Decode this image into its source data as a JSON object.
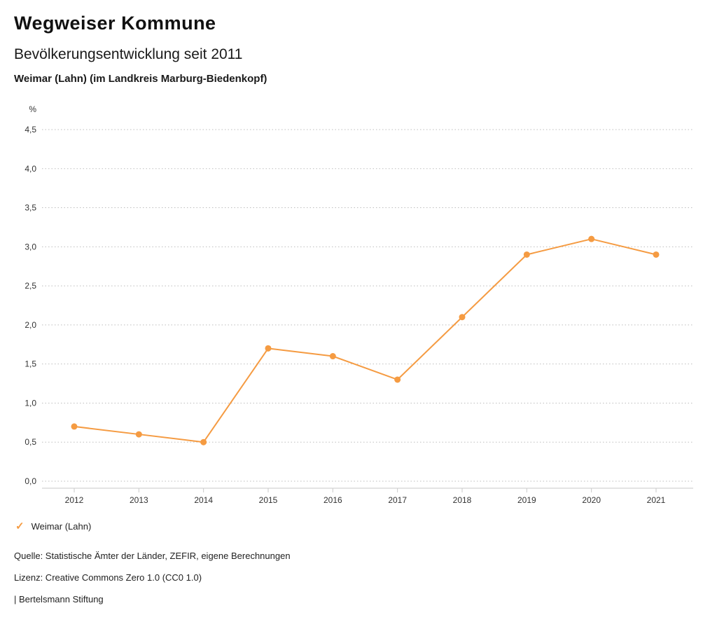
{
  "page": {
    "brand_title": "Wegweiser Kommune",
    "subtitle": "Bevölkerungsentwicklung seit 2011",
    "region_line": "Weimar (Lahn) (im Landkreis Marburg-Biedenkopf)"
  },
  "chart_data": {
    "type": "line",
    "title": "Bevölkerungsentwicklung seit 2011",
    "subtitle": "Weimar (Lahn) (im Landkreis Marburg-Biedenkopf)",
    "unit_label": "%",
    "categories": [
      "2012",
      "2013",
      "2014",
      "2015",
      "2016",
      "2017",
      "2018",
      "2019",
      "2020",
      "2021"
    ],
    "series": [
      {
        "name": "Weimar (Lahn)",
        "values": [
          0.7,
          0.6,
          0.5,
          1.7,
          1.6,
          1.3,
          2.1,
          2.9,
          3.1,
          2.9
        ],
        "color": "#f59b42"
      }
    ],
    "xlabel": "",
    "ylabel": "%",
    "ylim": [
      0,
      4.5
    ],
    "ytick_step": 0.5,
    "ytick_labels": [
      "0,0",
      "0,5",
      "1,0",
      "1,5",
      "2,0",
      "2,5",
      "3,0",
      "3,5",
      "4,0",
      "4,5"
    ],
    "grid": "horizontal-dotted",
    "legend_position": "bottom-left"
  },
  "legend": {
    "marker": "check-icon",
    "label": "Weimar (Lahn)",
    "color": "#f59b42"
  },
  "footer": {
    "source": "Quelle: Statistische Ämter der Länder, ZEFIR, eigene Berechnungen",
    "license": "Lizenz: Creative Commons Zero 1.0 (CC0 1.0)",
    "attribution": "| Bertelsmann Stiftung"
  },
  "colors": {
    "accent": "#f59b42",
    "grid": "#bdbdbd",
    "axis": "#c9c9c9",
    "tick_text": "#333333"
  }
}
